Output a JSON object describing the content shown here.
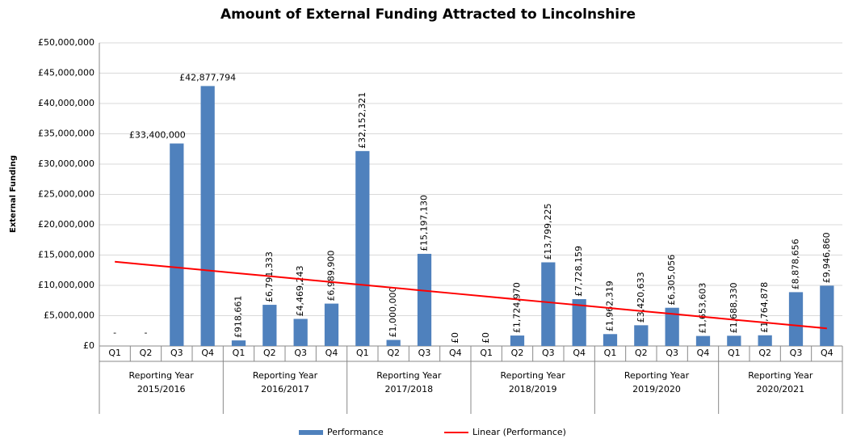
{
  "chart_data": {
    "type": "bar",
    "title": "Amount of External Funding Attracted to Lincolnshire",
    "y_label": "External Funding",
    "categories": [
      "Q1",
      "Q2",
      "Q3",
      "Q4",
      "Q1",
      "Q2",
      "Q3",
      "Q4",
      "Q1",
      "Q2",
      "Q3",
      "Q4",
      "Q1",
      "Q2",
      "Q3",
      "Q4",
      "Q1",
      "Q2",
      "Q3",
      "Q4",
      "Q1",
      "Q2",
      "Q3",
      "Q4"
    ],
    "groups": [
      [
        "Reporting Year",
        "2015/2016"
      ],
      [
        "Reporting Year",
        "2016/2017"
      ],
      [
        "Reporting Year",
        "2017/2018"
      ],
      [
        "Reporting Year",
        "2018/2019"
      ],
      [
        "Reporting Year",
        "2019/2020"
      ],
      [
        "Reporting Year",
        "2020/2021"
      ]
    ],
    "series": [
      {
        "name": "Performance",
        "color": "#4f81bd",
        "values": [
          null,
          null,
          33400000,
          42877794,
          918661,
          6791333,
          4469243,
          6989900,
          32152321,
          1000000,
          15197130,
          0,
          0,
          1724970,
          13799225,
          7728159,
          1962319,
          3420633,
          6305056,
          1653603,
          1688330,
          1764878,
          8878656,
          9946860
        ],
        "value_labels": [
          "-",
          "-",
          "£33,400,000",
          "£42,877,794",
          "£918,661",
          "£6,791,333",
          "£4,469,243",
          "£6,989,900",
          "£32,152,321",
          "£1,000,000",
          "£15,197,130",
          "£0",
          "£0",
          "£1,724,970",
          "£13,799,225",
          "£7,728,159",
          "£1,962,319",
          "£3,420,633",
          "£6,305,056",
          "£1,653,603",
          "£1,688,330",
          "£1,764,878",
          "£8,878,656",
          "£9,946,860"
        ]
      },
      {
        "name": "Linear (Performance)",
        "color": "#ff0000",
        "kind": "trendline",
        "values": [
          13900000,
          13422000,
          12944000,
          12466000,
          11988000,
          11510000,
          11032000,
          10554000,
          10076000,
          9598000,
          9120000,
          8642000,
          8164000,
          7686000,
          7208000,
          6730000,
          6252000,
          5774000,
          5296000,
          4818000,
          4340000,
          3862000,
          3384000,
          2906000
        ]
      }
    ],
    "ylim": [
      0,
      50000000
    ],
    "yticks": [
      {
        "value": 0,
        "label": "£0"
      },
      {
        "value": 5000000,
        "label": "£5,000,000"
      },
      {
        "value": 10000000,
        "label": "£10,000,000"
      },
      {
        "value": 15000000,
        "label": "£15,000,000"
      },
      {
        "value": 20000000,
        "label": "£20,000,000"
      },
      {
        "value": 25000000,
        "label": "£25,000,000"
      },
      {
        "value": 30000000,
        "label": "£30,000,000"
      },
      {
        "value": 35000000,
        "label": "£35,000,000"
      },
      {
        "value": 40000000,
        "label": "£40,000,000"
      },
      {
        "value": 45000000,
        "label": "£45,000,000"
      },
      {
        "value": 50000000,
        "label": "£50,000,000"
      }
    ],
    "grid": true,
    "legend": "bottom"
  }
}
